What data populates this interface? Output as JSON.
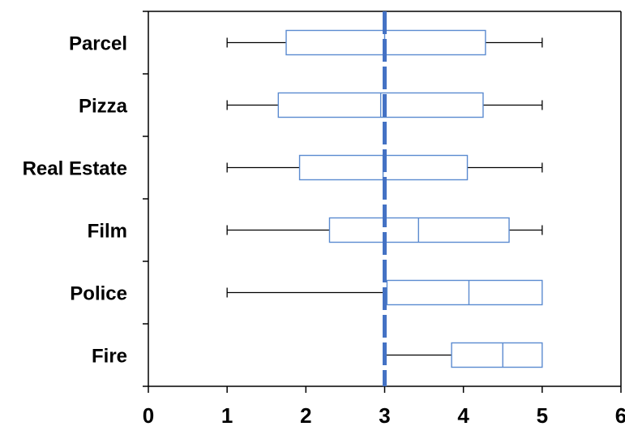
{
  "chart_data": {
    "type": "boxplot",
    "orientation": "horizontal",
    "title": "",
    "xlabel": "",
    "ylabel": "",
    "xlim": [
      0,
      6
    ],
    "xticks": [
      0,
      1,
      2,
      3,
      4,
      5,
      6
    ],
    "grid": false,
    "legend": "none",
    "reference_line": {
      "x": 3,
      "style": "dashed",
      "color": "#4472c4"
    },
    "box_color": "#5b8bd0",
    "whisker_color": "#000000",
    "categories": [
      "Parcel",
      "Pizza",
      "Real Estate",
      "Film",
      "Police",
      "Fire"
    ],
    "boxes": [
      {
        "name": "Parcel",
        "min": 1,
        "q1": 1.75,
        "median": 3.0,
        "q3": 4.28,
        "max": 5
      },
      {
        "name": "Pizza",
        "min": 1,
        "q1": 1.65,
        "median": 2.95,
        "q3": 4.25,
        "max": 5
      },
      {
        "name": "Real Estate",
        "min": 1,
        "q1": 1.92,
        "median": 2.98,
        "q3": 4.05,
        "max": 5
      },
      {
        "name": "Film",
        "min": 1,
        "q1": 2.3,
        "median": 3.43,
        "q3": 4.58,
        "max": 5
      },
      {
        "name": "Police",
        "min": 1,
        "q1": 3.03,
        "median": 4.07,
        "q3": 5.0,
        "max": 5
      },
      {
        "name": "Fire",
        "min": 3.0,
        "q1": 3.85,
        "median": 4.5,
        "q3": 5.0,
        "max": 5
      }
    ]
  }
}
